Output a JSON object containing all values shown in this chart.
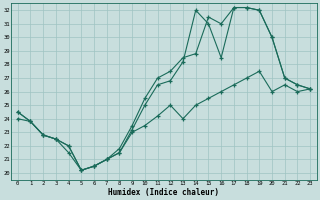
{
  "xlabel": "Humidex (Indice chaleur)",
  "background_color": "#c8dedd",
  "grid_color": "#9fc4c2",
  "line_color": "#1a6b5a",
  "xlim": [
    -0.5,
    23.5
  ],
  "ylim": [
    19.5,
    32.5
  ],
  "line1_x": [
    0,
    1,
    2,
    3,
    4,
    5,
    6,
    7,
    8,
    9,
    10,
    11,
    12,
    13,
    14,
    15,
    16,
    17,
    18,
    19,
    20,
    21,
    22,
    23
  ],
  "line1_y": [
    24.5,
    23.8,
    22.8,
    22.5,
    21.5,
    20.2,
    20.5,
    21.0,
    21.5,
    23.2,
    25.0,
    26.5,
    26.8,
    28.2,
    32.0,
    31.0,
    28.5,
    32.2,
    32.2,
    32.0,
    30.0,
    27.0,
    26.5,
    26.2
  ],
  "line2_x": [
    0,
    1,
    2,
    3,
    4,
    5,
    6,
    7,
    8,
    9,
    10,
    11,
    12,
    13,
    14,
    15,
    16,
    17,
    18,
    19,
    20,
    21,
    22,
    23
  ],
  "line2_y": [
    24.5,
    23.8,
    22.8,
    22.5,
    22.0,
    20.2,
    20.5,
    21.0,
    21.8,
    23.5,
    25.5,
    27.0,
    27.5,
    28.5,
    28.8,
    31.5,
    31.0,
    32.2,
    32.2,
    32.0,
    30.0,
    27.0,
    26.5,
    26.2
  ],
  "line3_x": [
    0,
    1,
    2,
    3,
    4,
    5,
    6,
    7,
    8,
    9,
    10,
    11,
    12,
    13,
    14,
    15,
    16,
    17,
    18,
    19,
    20,
    21,
    22,
    23
  ],
  "line3_y": [
    24.0,
    23.8,
    22.8,
    22.5,
    22.0,
    20.2,
    20.5,
    21.0,
    21.5,
    23.0,
    23.5,
    24.2,
    25.0,
    24.0,
    25.0,
    25.5,
    26.0,
    26.5,
    27.0,
    27.5,
    26.0,
    26.5,
    26.0,
    26.2
  ]
}
